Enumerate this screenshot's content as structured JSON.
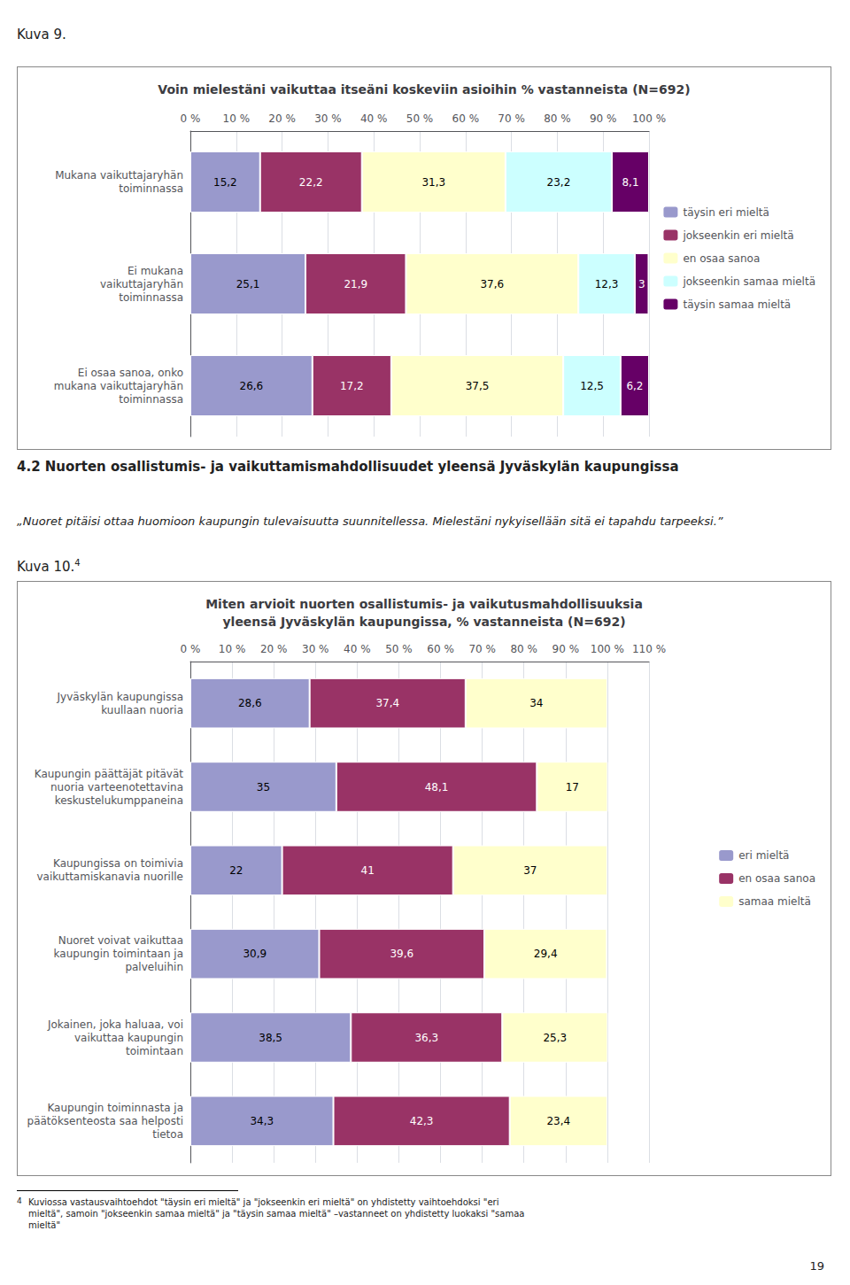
{
  "texts": {
    "figure1_label": "Kuva 9.",
    "section_title": "4.2 Nuorten osallistumis- ja vaikuttamismahdollisuudet yleensä Jyväskylän kaupungissa",
    "section_quote": "„Nuoret pitäisi ottaa huomioon kaupungin tulevaisuutta suunnitellessa. Mielestäni nykyisellään sitä ei tapahdu tarpeeksi.”",
    "figure2_label": "Kuva 10.",
    "figure2_note_mark": "4",
    "footnote_mark": "4",
    "footnote": "Kuviossa vastausvaihtoehdot \"täysin eri mieltä\" ja \"jokseenkin eri mieltä\" on yhdistetty vaihtoehdoksi \"eri\nmieltä\", samoin \"jokseenkin samaa mieltä\" ja \"täysin samaa mieltä\" –vastanneet on yhdistetty luokaksi \"samaa\nmieltä\"",
    "page_number": "19"
  },
  "chart_data": [
    {
      "type": "bar",
      "title": "Voin mielestäni vaikuttaa itseäni koskeviin asioihin % vastanneista (N=692)",
      "orientation": "horizontal",
      "stacked": true,
      "data_labels": true,
      "grid": true,
      "legend": "right",
      "categories": [
        "Mukana vaikuttajaryhän\ntoiminnassa",
        "Ei mukana\nvaikuttajaryhän\ntoiminnassa",
        "Ei osaa sanoa, onko\nmukana vaikuttajaryhän\ntoiminnassa"
      ],
      "xlim": [
        0,
        100
      ],
      "xticks": [
        {
          "value": 0,
          "label": "0 %"
        },
        {
          "value": 10,
          "label": "10 %"
        },
        {
          "value": 20,
          "label": "20 %"
        },
        {
          "value": 30,
          "label": "30 %"
        },
        {
          "value": 40,
          "label": "40 %"
        },
        {
          "value": 50,
          "label": "50 %"
        },
        {
          "value": 60,
          "label": "60 %"
        },
        {
          "value": 70,
          "label": "70 %"
        },
        {
          "value": 80,
          "label": "80 %"
        },
        {
          "value": 90,
          "label": "90 %"
        },
        {
          "value": 100,
          "label": "100 %"
        }
      ],
      "series": [
        {
          "name": "täysin eri mieltä",
          "color": "#9999cc",
          "values": [
            15.2,
            25.1,
            26.6
          ],
          "value_labels": [
            "15,2",
            "25,1",
            "26,6"
          ]
        },
        {
          "name": "jokseenkin eri mieltä",
          "color": "#993366",
          "values": [
            22.2,
            21.9,
            17.2
          ],
          "value_labels": [
            "22,2",
            "21,9",
            "17,2"
          ]
        },
        {
          "name": "en osaa sanoa",
          "color": "#ffffcc",
          "values": [
            31.3,
            37.6,
            37.5
          ],
          "value_labels": [
            "31,3",
            "37,6",
            "37,5"
          ]
        },
        {
          "name": "jokseenkin samaa mieltä",
          "color": "#ccffff",
          "values": [
            23.2,
            12.3,
            12.5
          ],
          "value_labels": [
            "23,2",
            "12,3",
            "12,5"
          ]
        },
        {
          "name": "täysin samaa mieltä",
          "color": "#660066",
          "values": [
            8.1,
            3.0,
            6.2
          ],
          "value_labels": [
            "8,1",
            "3",
            "6,2"
          ]
        }
      ]
    },
    {
      "type": "bar",
      "title": "Miten arvioit nuorten osallistumis- ja vaikutusmahdollisuuksia\nyleensä Jyväskylän kaupungissa, % vastanneista (N=692)",
      "orientation": "horizontal",
      "stacked": true,
      "data_labels": true,
      "grid": true,
      "legend": "right",
      "categories": [
        "Jyväskylän kaupungissa\nkuullaan nuoria",
        "Kaupungin päättäjät pitävät\nnuoria varteenotettavina\nkeskustelukumppaneina",
        "Kaupungissa on toimivia\nvaikuttamiskanavia nuorille",
        "Nuoret voivat vaikuttaa\nkaupungin toimintaan ja\npalveluihin",
        "Jokainen, joka haluaa, voi\nvaikuttaa kaupungin\ntoimintaan",
        "Kaupungin toiminnasta ja\npäätöksenteosta saa helposti\ntietoa"
      ],
      "xlim": [
        0,
        110
      ],
      "xticks": [
        {
          "value": 0,
          "label": "0 %"
        },
        {
          "value": 10,
          "label": "10 %"
        },
        {
          "value": 20,
          "label": "20 %"
        },
        {
          "value": 30,
          "label": "30 %"
        },
        {
          "value": 40,
          "label": "40 %"
        },
        {
          "value": 50,
          "label": "50 %"
        },
        {
          "value": 60,
          "label": "60 %"
        },
        {
          "value": 70,
          "label": "70 %"
        },
        {
          "value": 80,
          "label": "80 %"
        },
        {
          "value": 90,
          "label": "90 %"
        },
        {
          "value": 100,
          "label": "100 %"
        },
        {
          "value": 110,
          "label": "110 %"
        }
      ],
      "series": [
        {
          "name": "eri mieltä",
          "color": "#9999cc",
          "values": [
            28.6,
            35.0,
            22.0,
            30.9,
            38.5,
            34.3
          ],
          "value_labels": [
            "28,6",
            "35",
            "22",
            "30,9",
            "38,5",
            "34,3"
          ]
        },
        {
          "name": "en osaa sanoa",
          "color": "#993366",
          "values": [
            37.4,
            48.1,
            41.0,
            39.6,
            36.3,
            42.3
          ],
          "value_labels": [
            "37,4",
            "48,1",
            "41",
            "39,6",
            "36,3",
            "42,3"
          ]
        },
        {
          "name": "samaa mieltä",
          "color": "#ffffcc",
          "values": [
            34.0,
            17.0,
            37.0,
            29.4,
            25.3,
            23.4
          ],
          "value_labels": [
            "34",
            "17",
            "37",
            "29,4",
            "25,3",
            "23,4"
          ]
        }
      ]
    }
  ]
}
